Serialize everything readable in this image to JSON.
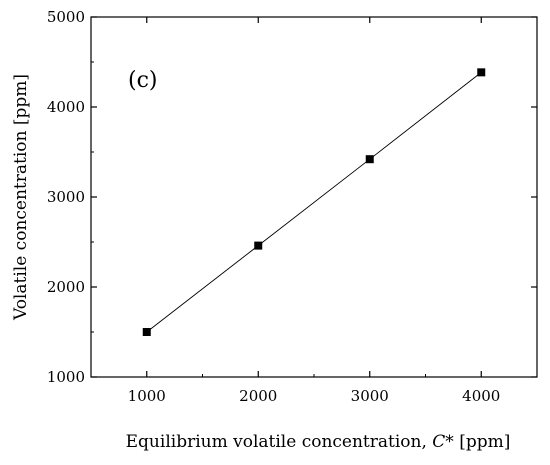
{
  "chart_data": {
    "type": "line",
    "panel_label": "(c)",
    "xlabel": "Equilibrium volatile concentration, ",
    "xlabel_symbol": "C",
    "xlabel_unit": "* [ppm]",
    "ylabel": "Volatile concentration [ppm]",
    "xlim": [
      500,
      4500
    ],
    "ylim": [
      1000,
      5000
    ],
    "x_ticks": [
      1000,
      2000,
      3000,
      4000
    ],
    "y_ticks": [
      1000,
      2000,
      3000,
      4000,
      5000
    ],
    "x_tick_labels": [
      "1000",
      "2000",
      "3000",
      "4000"
    ],
    "y_tick_labels": [
      "1000",
      "2000",
      "3000",
      "4000",
      "5000"
    ],
    "grid": false,
    "series": [
      {
        "x": [
          1000,
          2000,
          3000,
          4000
        ],
        "y": [
          1500,
          2460,
          3420,
          4385
        ],
        "marker": "square",
        "color": "#000000"
      }
    ]
  }
}
